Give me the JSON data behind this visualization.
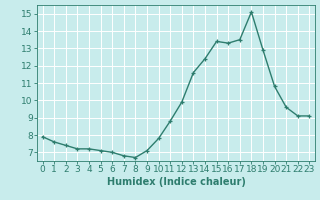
{
  "x": [
    0,
    1,
    2,
    3,
    4,
    5,
    6,
    7,
    8,
    9,
    10,
    11,
    12,
    13,
    14,
    15,
    16,
    17,
    18,
    19,
    20,
    21,
    22,
    23
  ],
  "y": [
    7.9,
    7.6,
    7.4,
    7.2,
    7.2,
    7.1,
    7.0,
    6.8,
    6.7,
    7.1,
    7.8,
    8.8,
    9.9,
    11.6,
    12.4,
    13.4,
    13.3,
    13.5,
    15.1,
    12.9,
    10.8,
    9.6,
    9.1,
    9.1
  ],
  "line_color": "#2e7d6e",
  "marker": "+",
  "marker_size": 3,
  "line_width": 1.0,
  "bg_color": "#c8ecec",
  "grid_color": "#ffffff",
  "xlabel": "Humidex (Indice chaleur)",
  "xlabel_fontsize": 7,
  "tick_color": "#2e7d6e",
  "tick_label_color": "#2e7d6e",
  "ylim": [
    6.5,
    15.5
  ],
  "xlim": [
    -0.5,
    23.5
  ],
  "yticks": [
    7,
    8,
    9,
    10,
    11,
    12,
    13,
    14,
    15
  ],
  "xticks": [
    0,
    1,
    2,
    3,
    4,
    5,
    6,
    7,
    8,
    9,
    10,
    11,
    12,
    13,
    14,
    15,
    16,
    17,
    18,
    19,
    20,
    21,
    22,
    23
  ],
  "tick_fontsize": 6.5
}
